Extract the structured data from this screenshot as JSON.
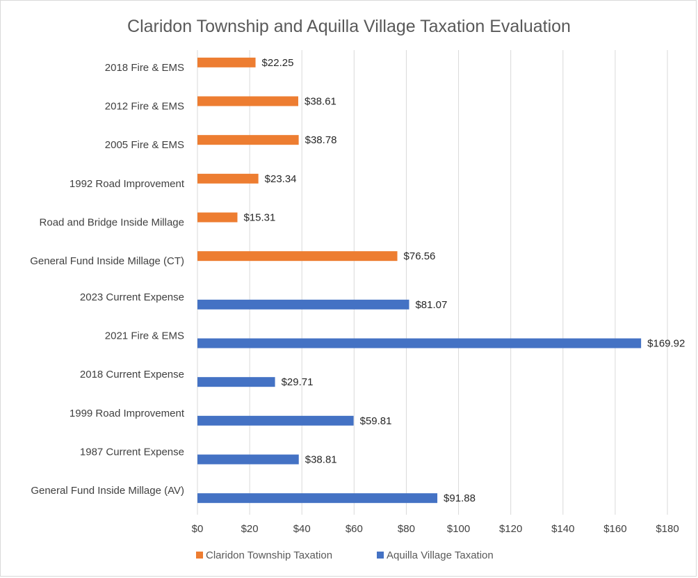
{
  "chart_data": {
    "type": "bar",
    "orientation": "horizontal",
    "title": "Claridon Township and Aquilla Village Taxation Evaluation",
    "xlim": [
      0,
      180
    ],
    "x_ticks": [
      "$0",
      "$20",
      "$40",
      "$60",
      "$80",
      "$100",
      "$120",
      "$140",
      "$160",
      "$180"
    ],
    "grid": true,
    "legend_position": "bottom",
    "categories": [
      "2018 Fire & EMS",
      "2012 Fire & EMS",
      "2005 Fire & EMS",
      "1992 Road Improvement",
      "Road and Bridge Inside Millage",
      "General Fund Inside Millage (CT)",
      "2023 Current Expense",
      "2021 Fire & EMS",
      "2018 Current Expense",
      "1999 Road Improvement",
      "1987 Current Expense",
      "General Fund Inside Millage (AV)"
    ],
    "series": [
      {
        "name": "Claridon Township Taxation",
        "color": "#ED7D31",
        "values": [
          22.25,
          38.61,
          38.78,
          23.34,
          15.31,
          76.56,
          null,
          null,
          null,
          null,
          null,
          null
        ],
        "labels": [
          "$22.25",
          "$38.61",
          "$38.78",
          "$23.34",
          "$15.31",
          "$76.56",
          null,
          null,
          null,
          null,
          null,
          null
        ]
      },
      {
        "name": "Aquilla Village Taxation",
        "color": "#4472C4",
        "values": [
          null,
          null,
          null,
          null,
          null,
          null,
          81.07,
          169.92,
          29.71,
          59.81,
          38.81,
          91.88
        ],
        "labels": [
          null,
          null,
          null,
          null,
          null,
          null,
          "$81.07",
          "$169.92",
          "$29.71",
          "$59.81",
          "$38.81",
          "$91.88"
        ]
      }
    ]
  }
}
